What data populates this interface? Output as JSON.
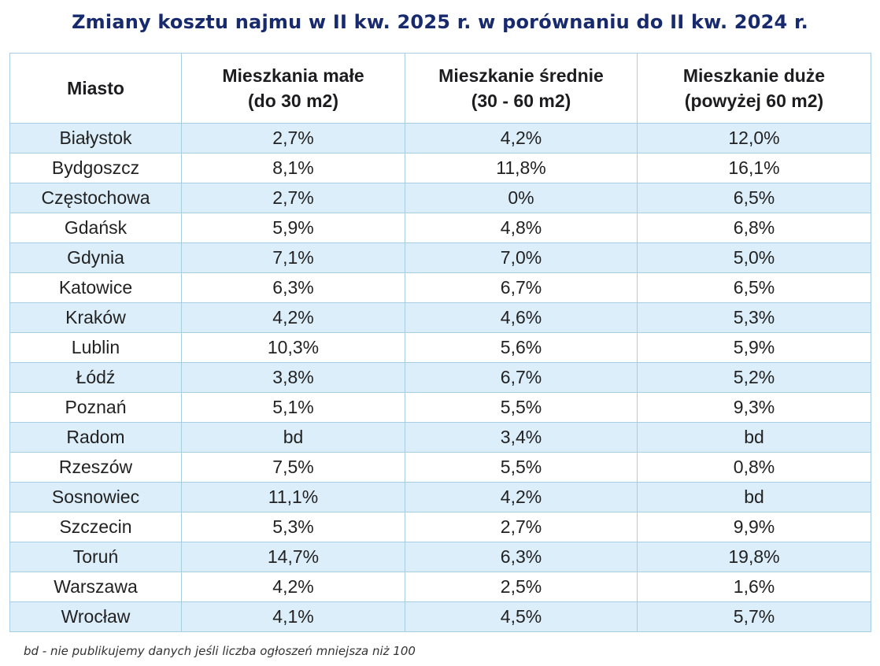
{
  "title": "Zmiany kosztu najmu w II kw. 2025 r. w porównaniu do II kw. 2024 r.",
  "table": {
    "headers": {
      "city": "Miasto",
      "small_line1": "Mieszkania małe",
      "small_line2": "(do 30 m2)",
      "medium_line1": "Mieszkanie średnie",
      "medium_line2": "(30 - 60 m2)",
      "large_line1": "Mieszkanie duże",
      "large_line2": "(powyżej 60 m2)"
    },
    "rows": [
      {
        "city": "Białystok",
        "small": "2,7%",
        "medium": "4,2%",
        "large": "12,0%"
      },
      {
        "city": "Bydgoszcz",
        "small": "8,1%",
        "medium": "11,8%",
        "large": "16,1%"
      },
      {
        "city": "Częstochowa",
        "small": "2,7%",
        "medium": "0%",
        "large": "6,5%"
      },
      {
        "city": "Gdańsk",
        "small": "5,9%",
        "medium": "4,8%",
        "large": "6,8%"
      },
      {
        "city": "Gdynia",
        "small": "7,1%",
        "medium": "7,0%",
        "large": "5,0%"
      },
      {
        "city": "Katowice",
        "small": "6,3%",
        "medium": "6,7%",
        "large": "6,5%"
      },
      {
        "city": "Kraków",
        "small": "4,2%",
        "medium": "4,6%",
        "large": "5,3%"
      },
      {
        "city": "Lublin",
        "small": "10,3%",
        "medium": "5,6%",
        "large": "5,9%"
      },
      {
        "city": "Łódź",
        "small": "3,8%",
        "medium": "6,7%",
        "large": "5,2%"
      },
      {
        "city": "Poznań",
        "small": "5,1%",
        "medium": "5,5%",
        "large": "9,3%"
      },
      {
        "city": "Radom",
        "small": "bd",
        "medium": "3,4%",
        "large": "bd"
      },
      {
        "city": "Rzeszów",
        "small": "7,5%",
        "medium": "5,5%",
        "large": "0,8%"
      },
      {
        "city": "Sosnowiec",
        "small": "11,1%",
        "medium": "4,2%",
        "large": "bd"
      },
      {
        "city": "Szczecin",
        "small": "5,3%",
        "medium": "2,7%",
        "large": "9,9%"
      },
      {
        "city": "Toruń",
        "small": "14,7%",
        "medium": "6,3%",
        "large": "19,8%"
      },
      {
        "city": "Warszawa",
        "small": "4,2%",
        "medium": "2,5%",
        "large": "1,6%"
      },
      {
        "city": "Wrocław",
        "small": "4,1%",
        "medium": "4,5%",
        "large": "5,7%"
      }
    ]
  },
  "footnote": "bd - nie publikujemy danych jeśli liczba ogłoszeń mniejsza niż 100",
  "colors": {
    "title": "#182a6e",
    "stripe": "#dceefa",
    "border": "#a9cde3"
  }
}
